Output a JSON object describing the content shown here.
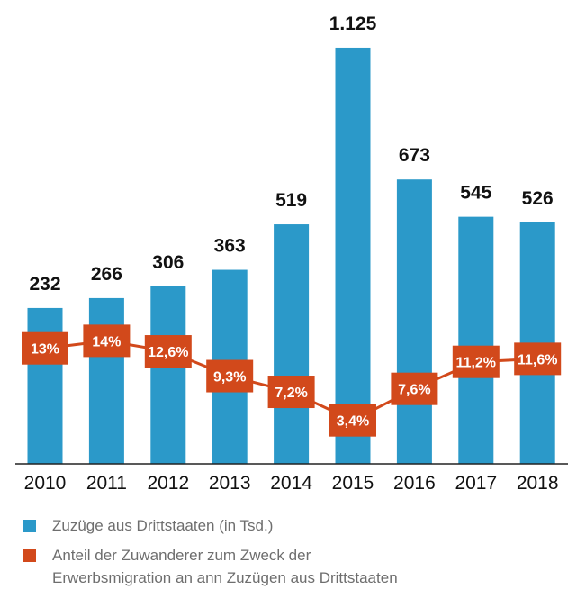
{
  "chart_data": {
    "type": "bar+line",
    "categories": [
      "2010",
      "2011",
      "2012",
      "2013",
      "2014",
      "2015",
      "2016",
      "2017",
      "2018"
    ],
    "series": [
      {
        "name": "Zuzüge aus Drittstaaten (in Tsd.)",
        "type": "bar",
        "color": "#2b99c9",
        "values": [
          232,
          266,
          306,
          363,
          519,
          1125,
          673,
          545,
          526
        ],
        "labels": [
          "232",
          "266",
          "306",
          "363",
          "519",
          "1.125",
          "673",
          "545",
          "526"
        ]
      },
      {
        "name": "Anteil der Zuwanderer zum Zweck der Erwerbsmigration an ann Zuzügen aus Drittstaaten",
        "type": "line",
        "color": "#d2491b",
        "values": [
          13,
          14,
          12.6,
          9.3,
          7.2,
          3.4,
          7.6,
          11.2,
          11.6
        ],
        "labels": [
          "13%",
          "14%",
          "12,6%",
          "9,3%",
          "7,2%",
          "3,4%",
          "7,6%",
          "11,2%",
          "11,6%"
        ]
      }
    ],
    "legend": {
      "position": "bottom",
      "items": [
        {
          "line1": "Zuzüge aus Drittstaaten (in Tsd.)"
        },
        {
          "line1": "Anteil der Zuwanderer zum Zweck der",
          "line2": "Erwerbsmigration an ann Zuzügen aus Drittstaaten"
        }
      ]
    },
    "grid": false
  }
}
